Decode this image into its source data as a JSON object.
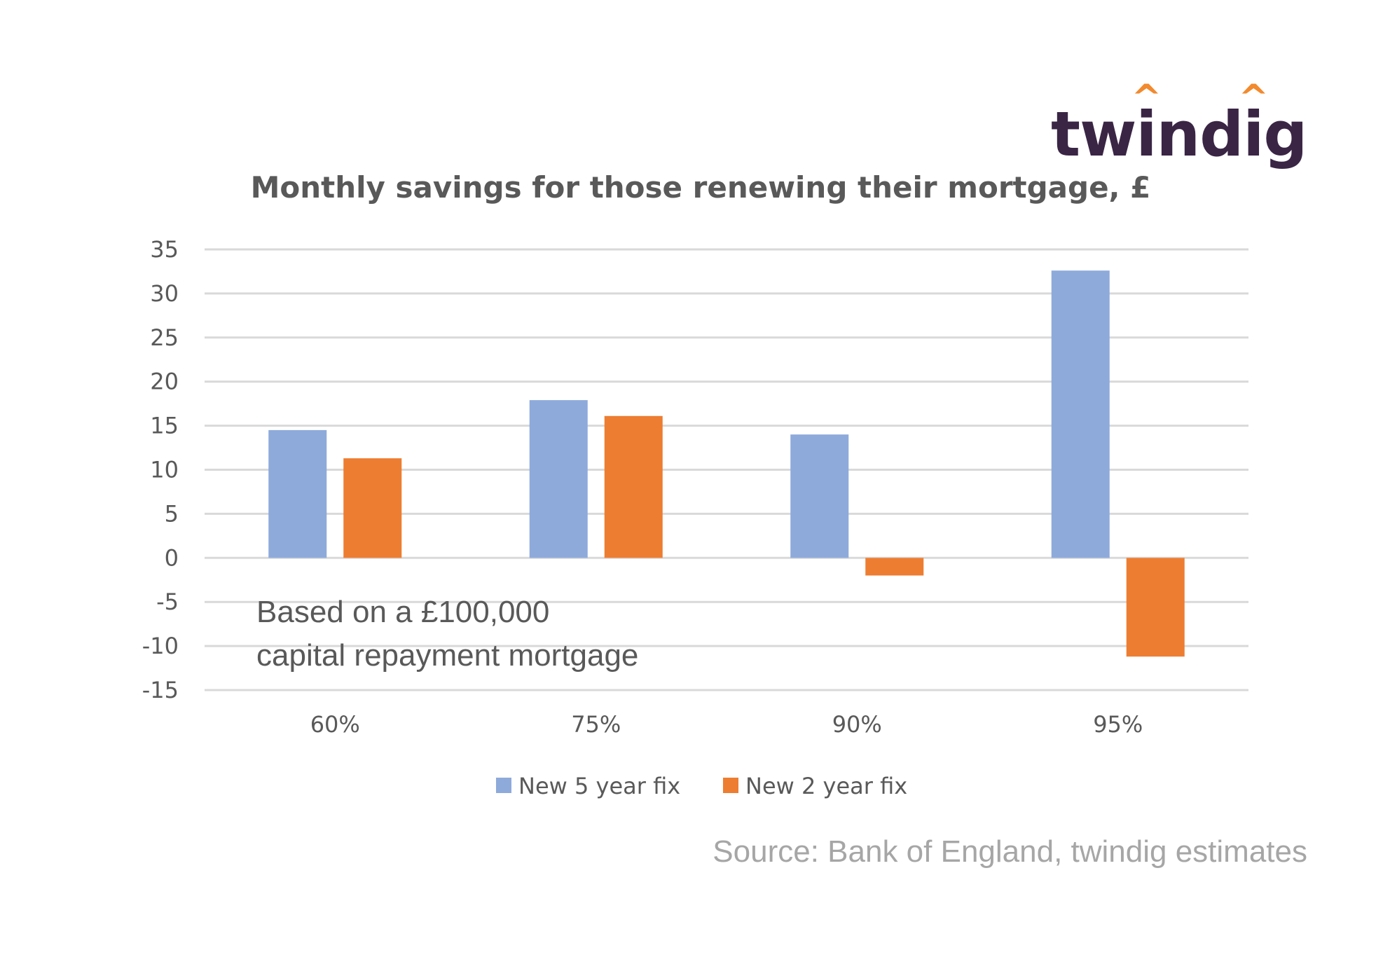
{
  "logo": {
    "text": "twindig",
    "accent_color": "#f28a2e",
    "text_color": "#3a2545"
  },
  "chart_data": {
    "type": "bar",
    "title": "Monthly savings for those renewing their mortgage, £",
    "categories": [
      "60%",
      "75%",
      "90%",
      "95%"
    ],
    "series": [
      {
        "name": "New 5 year fix",
        "color": "#8eaadb",
        "values": [
          14.5,
          17.9,
          14.0,
          32.6
        ]
      },
      {
        "name": "New 2 year fix",
        "color": "#ed7d31",
        "values": [
          11.3,
          16.1,
          -2.0,
          -11.2
        ]
      }
    ],
    "ylim": [
      -15,
      35
    ],
    "yticks": [
      35,
      30,
      25,
      20,
      15,
      10,
      5,
      0,
      -5,
      -10,
      -15
    ],
    "grid": true,
    "legend": "bottom",
    "annotation_lines": [
      "Based on a £100,000",
      "capital repayment mortgage"
    ]
  },
  "source": "Source: Bank of England, twindig estimates"
}
